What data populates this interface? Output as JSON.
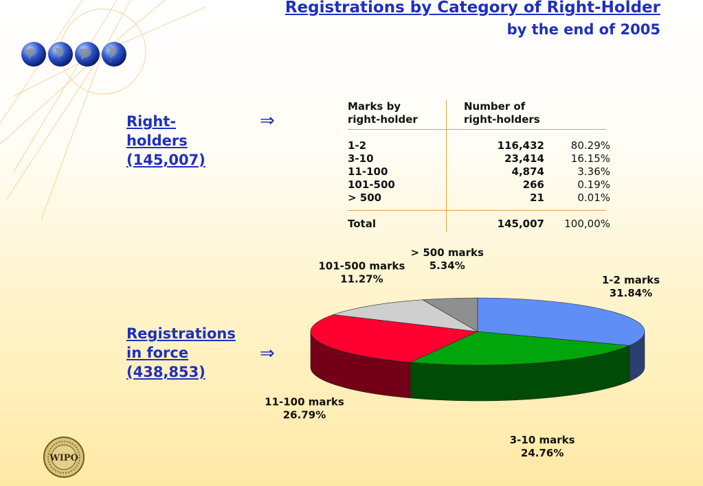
{
  "header": {
    "title": "Registrations by Category of Right-Holder",
    "subtitle": "by the end of 2005"
  },
  "left": {
    "right_holders_label": [
      "Right-",
      "holders",
      "(145,007)"
    ],
    "registrations_label": [
      "Registrations",
      "in force",
      "(438,853)"
    ],
    "arrow_glyph": "⇒"
  },
  "table": {
    "headers": [
      [
        "Marks by",
        "right-holder"
      ],
      [
        "Number of",
        "right-holders"
      ]
    ],
    "rows": [
      {
        "category": "1-2",
        "count": "116,432",
        "percent": "80.29%"
      },
      {
        "category": "3-10",
        "count": "23,414",
        "percent": "16.15%"
      },
      {
        "category": "11-100",
        "count": "4,874",
        "percent": "3.36%"
      },
      {
        "category": "101-500",
        "count": "266",
        "percent": "0.19%"
      },
      {
        "category": "> 500",
        "count": "21",
        "percent": "0.01%"
      }
    ],
    "total": {
      "category": "Total",
      "count": "145,007",
      "percent": "100,00%"
    }
  },
  "chart_data": {
    "type": "pie",
    "title": "",
    "slices": [
      {
        "label": "1-2 marks",
        "value": 31.84,
        "pct_label": "31.84%",
        "color": "#5f8ef7"
      },
      {
        "label": "3-10 marks",
        "value": 24.76,
        "pct_label": "24.76%",
        "color": "#00a60c"
      },
      {
        "label": "11-100 marks",
        "value": 26.79,
        "pct_label": "26.79%",
        "color": "#ff0030"
      },
      {
        "label": "101-500 marks",
        "value": 11.27,
        "pct_label": "11.27%",
        "color": "#cfcfcf"
      },
      {
        "label": "> 500 marks",
        "value": 5.34,
        "pct_label": "5.34%",
        "color": "#8f8f8f"
      }
    ],
    "legend": "none",
    "style": "3d"
  },
  "colors": {
    "accent": "#1f2fbf",
    "rule": "#e8a23c"
  },
  "icons": [
    "globe-icon",
    "wipo-seal-icon"
  ],
  "seal": {
    "text": "WIPO"
  }
}
